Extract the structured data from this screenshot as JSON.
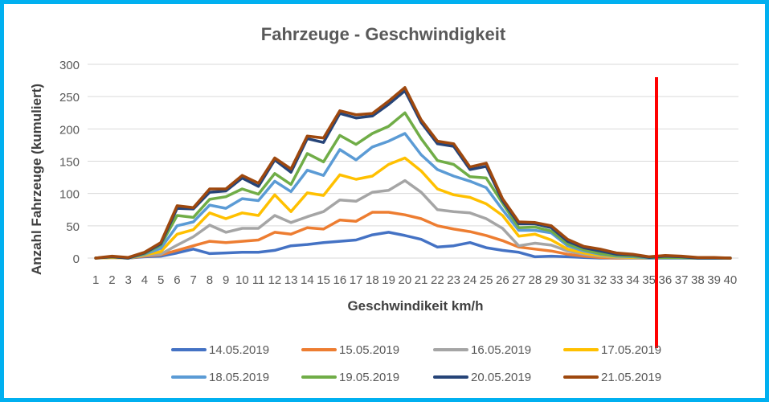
{
  "chart_data": {
    "type": "line",
    "title": "Fahrzeuge - Geschwindigkeit",
    "xlabel": "Geschwindikeit km/h",
    "ylabel": "Anzahl Fahrzeuge (kumuliert)",
    "ylim": [
      0,
      300
    ],
    "yticks": [
      0,
      50,
      100,
      150,
      200,
      250,
      300
    ],
    "grid": true,
    "legend": "bottom",
    "x": [
      1,
      2,
      3,
      4,
      5,
      6,
      7,
      8,
      9,
      10,
      11,
      12,
      13,
      14,
      15,
      16,
      17,
      18,
      19,
      20,
      21,
      22,
      23,
      24,
      25,
      26,
      27,
      28,
      29,
      30,
      31,
      32,
      33,
      34,
      35,
      36,
      37,
      38,
      39,
      40
    ],
    "x_tick_labels": [
      "1",
      "2",
      "3",
      "4",
      "5",
      "6",
      "7",
      "8",
      "9",
      "10",
      "11",
      "12",
      "13",
      "14",
      "15",
      "16",
      "17",
      "18",
      "19",
      "20",
      "21",
      "22",
      "23",
      "24",
      "25",
      "26",
      "27",
      "28",
      "29",
      "30",
      "31",
      "32",
      "33",
      "34",
      "35",
      "36",
      "37",
      "38",
      "39",
      "40"
    ],
    "series": [
      {
        "name": "14.05.2019",
        "color": "#4472c4",
        "values": [
          0,
          1,
          0,
          2,
          3,
          8,
          14,
          7,
          8,
          9,
          9,
          12,
          19,
          21,
          24,
          26,
          28,
          36,
          40,
          35,
          29,
          17,
          19,
          24,
          16,
          12,
          9,
          2,
          3,
          2,
          1,
          0,
          0,
          0,
          0,
          0,
          0,
          0,
          0,
          0
        ]
      },
      {
        "name": "15.05.2019",
        "color": "#ed7d31",
        "values": [
          0,
          1,
          0,
          3,
          5,
          12,
          19,
          26,
          24,
          26,
          28,
          40,
          37,
          47,
          45,
          59,
          57,
          71,
          71,
          67,
          61,
          50,
          45,
          41,
          35,
          27,
          17,
          14,
          11,
          6,
          3,
          1,
          0,
          0,
          0,
          0,
          0,
          0,
          0,
          0
        ]
      },
      {
        "name": "16.05.2019",
        "color": "#a5a5a5",
        "values": [
          0,
          1,
          0,
          4,
          6,
          20,
          33,
          51,
          40,
          46,
          46,
          66,
          55,
          64,
          72,
          90,
          88,
          102,
          105,
          120,
          102,
          75,
          72,
          70,
          61,
          46,
          19,
          23,
          20,
          11,
          6,
          3,
          1,
          0,
          0,
          0,
          0,
          0,
          0,
          0
        ]
      },
      {
        "name": "17.05.2019",
        "color": "#ffc000",
        "values": [
          0,
          1,
          0,
          5,
          10,
          37,
          44,
          70,
          61,
          70,
          66,
          98,
          72,
          101,
          97,
          129,
          122,
          127,
          145,
          155,
          135,
          107,
          98,
          94,
          84,
          66,
          34,
          37,
          28,
          14,
          8,
          4,
          2,
          1,
          0,
          0,
          0,
          0,
          0,
          0
        ]
      },
      {
        "name": "18.05.2019",
        "color": "#5b9bd5",
        "values": [
          0,
          2,
          0,
          6,
          15,
          50,
          56,
          82,
          77,
          92,
          89,
          119,
          103,
          136,
          128,
          168,
          152,
          172,
          181,
          193,
          160,
          137,
          127,
          119,
          109,
          75,
          43,
          43,
          39,
          19,
          11,
          6,
          3,
          2,
          0,
          0,
          0,
          0,
          0,
          0
        ]
      },
      {
        "name": "19.05.2019",
        "color": "#70ad47",
        "values": [
          0,
          2,
          0,
          7,
          20,
          66,
          63,
          91,
          95,
          107,
          99,
          131,
          114,
          162,
          149,
          190,
          176,
          193,
          204,
          225,
          185,
          151,
          145,
          126,
          124,
          85,
          47,
          48,
          42,
          22,
          13,
          7,
          4,
          3,
          1,
          1,
          1,
          0,
          0,
          0
        ]
      },
      {
        "name": "20.05.2019",
        "color": "#264478",
        "values": [
          0,
          2,
          0,
          8,
          22,
          77,
          76,
          102,
          104,
          124,
          111,
          152,
          133,
          185,
          179,
          224,
          217,
          220,
          238,
          259,
          210,
          177,
          173,
          137,
          142,
          89,
          53,
          53,
          47,
          26,
          16,
          11,
          6,
          5,
          1,
          3,
          2,
          0,
          0,
          0
        ]
      },
      {
        "name": "21.05.2019",
        "color": "#9e480e",
        "values": [
          0,
          3,
          1,
          9,
          24,
          81,
          78,
          107,
          107,
          128,
          116,
          155,
          138,
          189,
          186,
          228,
          222,
          224,
          243,
          264,
          214,
          181,
          177,
          141,
          147,
          92,
          56,
          55,
          50,
          29,
          18,
          14,
          8,
          6,
          2,
          4,
          3,
          1,
          1,
          0
        ]
      }
    ]
  }
}
